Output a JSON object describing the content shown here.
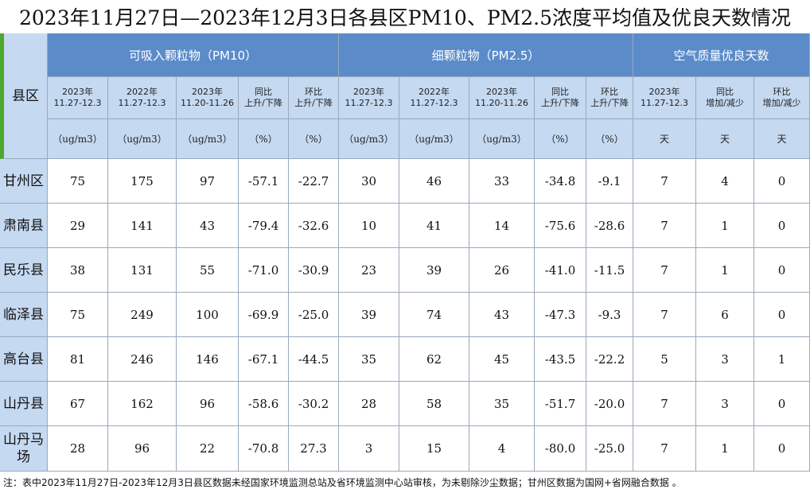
{
  "title": "2023年11月27日—2023年12月3日各县区PM10、PM2.5浓度平均值及优良天数情况",
  "header": {
    "county": "县区",
    "groups": [
      "可吸入颗粒物（PM10）",
      "细颗粒物（PM2.5）",
      "空气质量优良天数"
    ],
    "subheaders": [
      [
        "2023年",
        "11.27-12.3"
      ],
      [
        "2022年",
        "11.27-12.3"
      ],
      [
        "2023年",
        "11.20-11.26"
      ],
      [
        "同比",
        "上升/下降"
      ],
      [
        "环比",
        "上升/下降"
      ],
      [
        "2023年",
        "11.27-12.3"
      ],
      [
        "2022年",
        "11.27-12.3"
      ],
      [
        "2023年",
        "11.20-11.26"
      ],
      [
        "同比",
        "上升/下降"
      ],
      [
        "环比",
        "上升/下降"
      ],
      [
        "2023年",
        "11.27-12.3"
      ],
      [
        "同比",
        "增加/减少"
      ],
      [
        "环比",
        "增加/减少"
      ]
    ],
    "units": [
      "（ug/m3）",
      "（ug/m3）",
      "（ug/m3）",
      "（%）",
      "（%）",
      "（ug/m3）",
      "（ug/m3）",
      "（ug/m3）",
      "（%）",
      "（%）",
      "天",
      "天",
      "天"
    ]
  },
  "rows": [
    {
      "name": "甘州区",
      "cells": [
        "75",
        "175",
        "97",
        "-57.1",
        "-22.7",
        "30",
        "46",
        "33",
        "-34.8",
        "-9.1",
        "7",
        "4",
        "0"
      ]
    },
    {
      "name": "肃南县",
      "cells": [
        "29",
        "141",
        "43",
        "-79.4",
        "-32.6",
        "10",
        "41",
        "14",
        "-75.6",
        "-28.6",
        "7",
        "1",
        "0"
      ]
    },
    {
      "name": "民乐县",
      "cells": [
        "38",
        "131",
        "55",
        "-71.0",
        "-30.9",
        "23",
        "39",
        "26",
        "-41.0",
        "-11.5",
        "7",
        "1",
        "0"
      ]
    },
    {
      "name": "临泽县",
      "cells": [
        "75",
        "249",
        "100",
        "-69.9",
        "-25.0",
        "39",
        "74",
        "43",
        "-47.3",
        "-9.3",
        "7",
        "6",
        "0"
      ]
    },
    {
      "name": "高台县",
      "cells": [
        "81",
        "246",
        "146",
        "-67.1",
        "-44.5",
        "35",
        "62",
        "45",
        "-43.5",
        "-22.2",
        "5",
        "3",
        "1"
      ]
    },
    {
      "name": "山丹县",
      "cells": [
        "67",
        "162",
        "96",
        "-58.6",
        "-30.2",
        "28",
        "58",
        "35",
        "-51.7",
        "-20.0",
        "7",
        "3",
        "0"
      ]
    },
    {
      "name": "山丹马场",
      "cells": [
        "28",
        "96",
        "22",
        "-70.8",
        "27.3",
        "3",
        "15",
        "4",
        "-80.0",
        "-25.0",
        "7",
        "1",
        "0"
      ]
    }
  ],
  "note": "注：表中2023年11月27日-2023年12月3日县区数据未经国家环境监测总站及省环境监测中心站审核，为未剔除沙尘数据；甘州区数据为国网+省网融合数据 。"
}
